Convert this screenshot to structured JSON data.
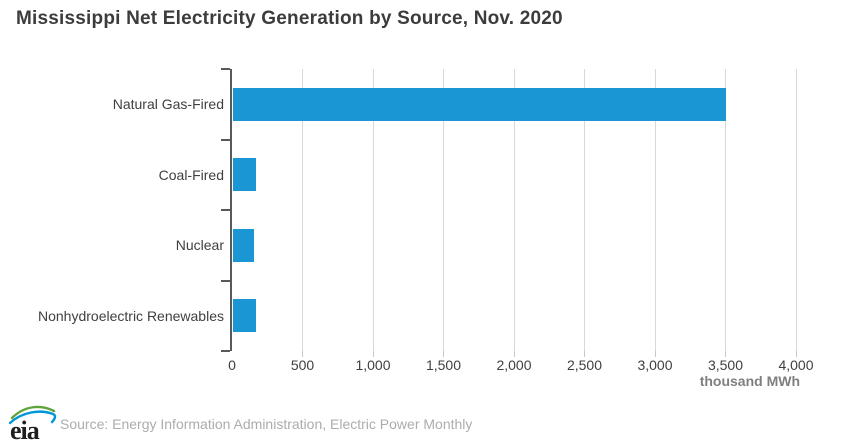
{
  "chart_data": {
    "type": "bar",
    "orientation": "horizontal",
    "title": "Mississippi Net Electricity Generation by Source, Nov. 2020",
    "categories": [
      "Natural Gas-Fired",
      "Coal-Fired",
      "Nuclear",
      "Nonhydroelectric Renewables"
    ],
    "values": [
      3500,
      165,
      150,
      160
    ],
    "unit_label": "thousand MWh",
    "xlabel": "",
    "ylabel": "",
    "xlim": [
      0,
      4000
    ],
    "grid": true,
    "legend": "none",
    "x_ticks": [
      {
        "value": 0,
        "label": "0"
      },
      {
        "value": 500,
        "label": "500"
      },
      {
        "value": 1000,
        "label": "1,000"
      },
      {
        "value": 1500,
        "label": "1,500"
      },
      {
        "value": 2000,
        "label": "2,000"
      },
      {
        "value": 2500,
        "label": "2,500"
      },
      {
        "value": 3000,
        "label": "3,000"
      },
      {
        "value": 3500,
        "label": "3,500"
      },
      {
        "value": 4000,
        "label": "4,000"
      }
    ],
    "colors": {
      "bar": "#1A96D4",
      "axis": "#58595B",
      "gridline": "#D9D9D9",
      "bottom_tick": "#C6C6C6",
      "tick_label": "#404040",
      "unit_label": "#7F7F7F",
      "title": "#3C3C3C"
    }
  },
  "footer": {
    "logo_text": "eia",
    "logo_colors": {
      "green_swoosh": "#5FA33A",
      "blue_swoosh": "#0096D7",
      "letters": "#1F1F1F"
    },
    "source_text": "Source: Energy Information Administration, Electric Power Monthly"
  }
}
